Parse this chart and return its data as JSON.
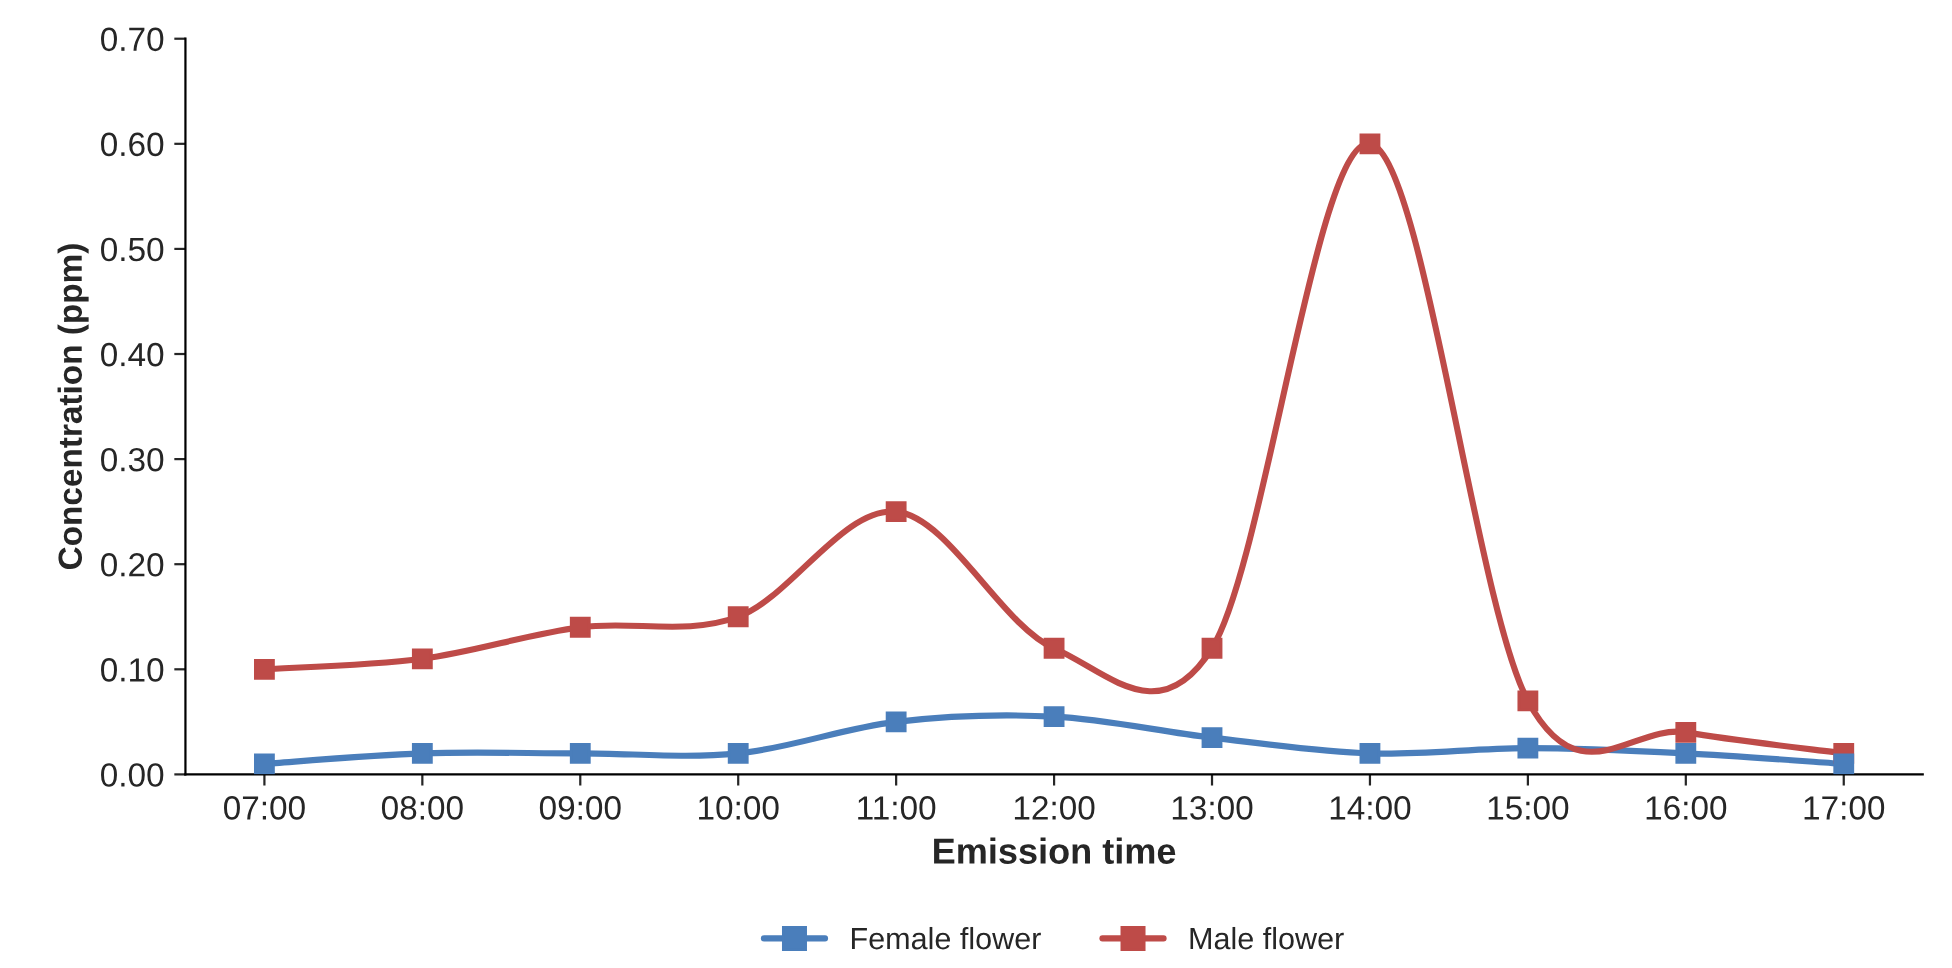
{
  "chart_data": {
    "type": "line",
    "xlabel": "Emission time",
    "ylabel": "Concentration (ppm)",
    "categories": [
      "07:00",
      "08:00",
      "09:00",
      "10:00",
      "11:00",
      "12:00",
      "13:00",
      "14:00",
      "15:00",
      "16:00",
      "17:00"
    ],
    "series": [
      {
        "name": "Female flower",
        "color": "#4a7ebb",
        "values": [
          0.01,
          0.02,
          0.02,
          0.02,
          0.05,
          0.055,
          0.035,
          0.02,
          0.025,
          0.02,
          0.01
        ]
      },
      {
        "name": "Male flower",
        "color": "#be4b48",
        "values": [
          0.1,
          0.11,
          0.14,
          0.15,
          0.25,
          0.12,
          0.12,
          0.6,
          0.07,
          0.04,
          0.02
        ]
      }
    ],
    "ylim": [
      0,
      0.7
    ],
    "yticks": [
      {
        "value": 0,
        "label": "0.00"
      },
      {
        "value": 0.1,
        "label": "0.10"
      },
      {
        "value": 0.2,
        "label": "0.20"
      },
      {
        "value": 0.3,
        "label": "0.30"
      },
      {
        "value": 0.4,
        "label": "0.40"
      },
      {
        "value": 0.5,
        "label": "0.50"
      },
      {
        "value": 0.6,
        "label": "0.60"
      },
      {
        "value": 0.7,
        "label": "0.70"
      }
    ],
    "grid": false,
    "legend": "bottom",
    "marker": "square",
    "line_style": "solid"
  }
}
